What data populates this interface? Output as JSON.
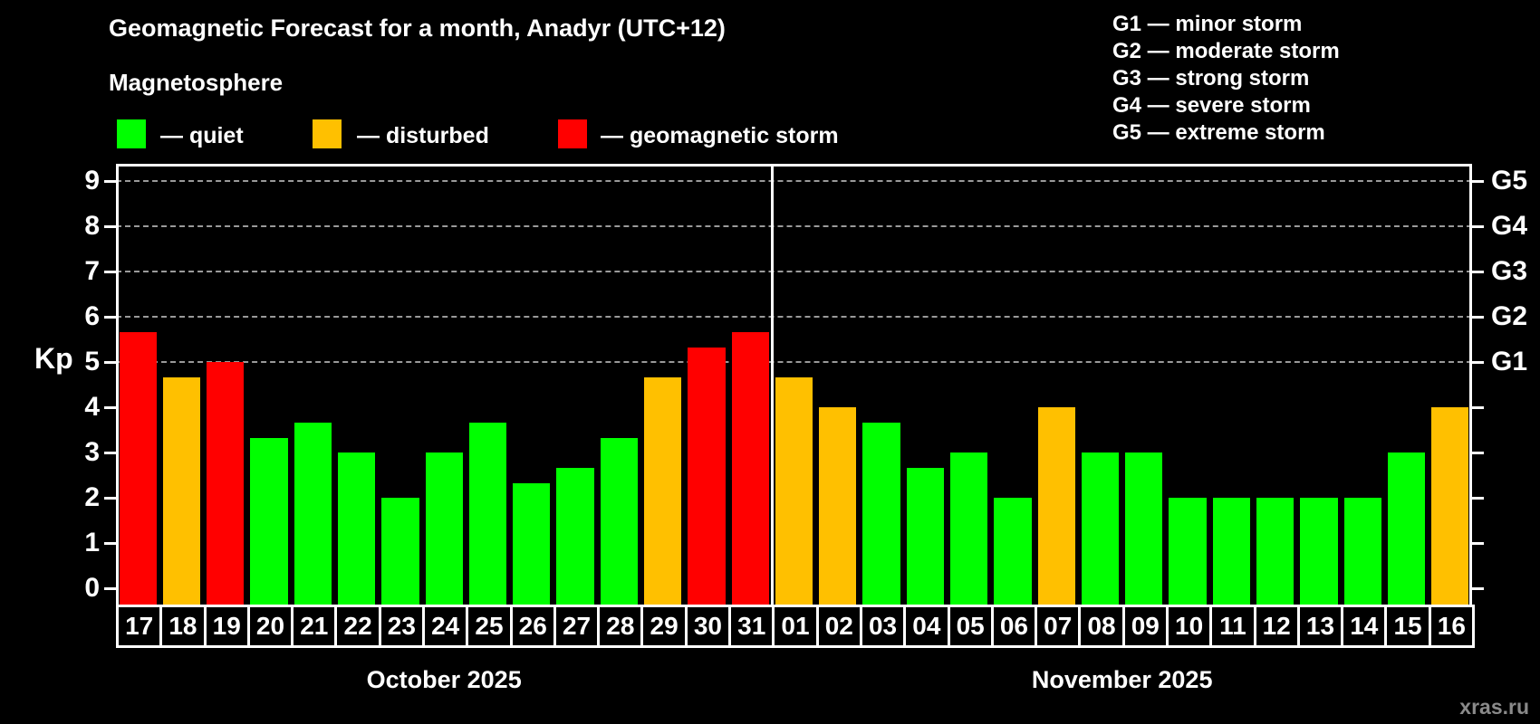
{
  "header": {
    "title": "Geomagnetic Forecast for a month, Anadyr (UTC+12)",
    "subtitle": "Magnetosphere"
  },
  "legend": {
    "items": [
      {
        "name": "quiet",
        "label": "— quiet",
        "color": "#00ff00"
      },
      {
        "name": "disturbed",
        "label": "— disturbed",
        "color": "#ffc000"
      },
      {
        "name": "storm",
        "label": "— geomagnetic storm",
        "color": "#ff0000"
      }
    ]
  },
  "g_legend": {
    "lines": [
      "G1 — minor storm",
      "G2 — moderate storm",
      "G3 — strong storm",
      "G4 — severe storm",
      "G5 — extreme storm"
    ]
  },
  "axis": {
    "y_label": "Kp",
    "left_ticks": [
      "0",
      "1",
      "2",
      "3",
      "4",
      "5",
      "6",
      "7",
      "8",
      "9"
    ],
    "right_labels": [
      {
        "kp": 5,
        "label": "G1"
      },
      {
        "kp": 6,
        "label": "G2"
      },
      {
        "kp": 7,
        "label": "G3"
      },
      {
        "kp": 8,
        "label": "G4"
      },
      {
        "kp": 9,
        "label": "G5"
      }
    ]
  },
  "chart_data": {
    "type": "bar",
    "title": "Geomagnetic Forecast for a month, Anadyr (UTC+12)",
    "ylabel": "Kp",
    "ylim": [
      0,
      9.6
    ],
    "grid": "dashed horizontal at G-storm levels",
    "gridlines_kp": [
      5,
      6,
      7,
      8,
      9
    ],
    "categories": [
      "17",
      "18",
      "19",
      "20",
      "21",
      "22",
      "23",
      "24",
      "25",
      "26",
      "27",
      "28",
      "29",
      "30",
      "31",
      "01",
      "02",
      "03",
      "04",
      "05",
      "06",
      "07",
      "08",
      "09",
      "10",
      "11",
      "12",
      "13",
      "14",
      "15",
      "16"
    ],
    "values": [
      5.67,
      4.67,
      5,
      3.33,
      3.67,
      3,
      2,
      3,
      3.67,
      2.33,
      2.67,
      3.33,
      4.67,
      5.33,
      5.67,
      4.67,
      4,
      3.67,
      2.67,
      3,
      2,
      4,
      3,
      3,
      2,
      2,
      2,
      2,
      2,
      3,
      4
    ],
    "status": [
      "storm",
      "disturbed",
      "storm",
      "quiet",
      "quiet",
      "quiet",
      "quiet",
      "quiet",
      "quiet",
      "quiet",
      "quiet",
      "quiet",
      "disturbed",
      "storm",
      "storm",
      "disturbed",
      "disturbed",
      "quiet",
      "quiet",
      "quiet",
      "quiet",
      "disturbed",
      "quiet",
      "quiet",
      "quiet",
      "quiet",
      "quiet",
      "quiet",
      "quiet",
      "quiet",
      "disturbed"
    ],
    "colors": {
      "quiet": "#00ff00",
      "disturbed": "#ffc000",
      "storm": "#ff0000"
    },
    "months": [
      {
        "label": "October 2025",
        "span": 15
      },
      {
        "label": "November 2025",
        "span": 16
      }
    ]
  },
  "watermark": "xras.ru"
}
